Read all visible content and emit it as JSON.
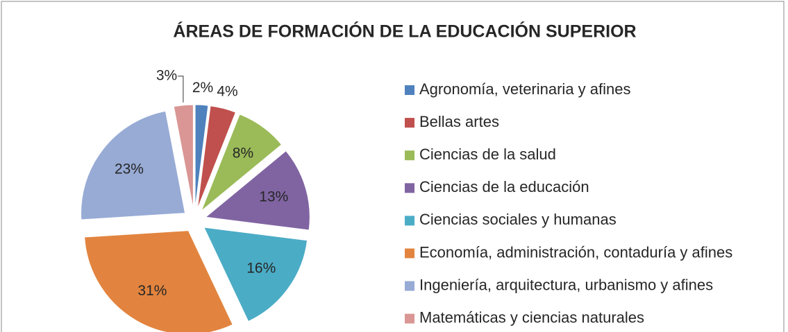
{
  "chart_data": {
    "type": "pie",
    "title": "ÁREAS DE FORMACIÓN DE LA EDUCACIÓN SUPERIOR",
    "categories": [
      "Agronomía, veterinaria y afines",
      "Bellas artes",
      "Ciencias de la salud",
      "Ciencias de la educación",
      "Ciencias sociales y humanas",
      "Economía, administración, contaduría y afines",
      "Ingeniería, arquitectura, urbanismo y afines",
      "Matemáticas y ciencias naturales"
    ],
    "values": [
      2,
      4,
      8,
      13,
      16,
      31,
      23,
      3
    ],
    "value_labels": [
      "2%",
      "4%",
      "8%",
      "13%",
      "16%",
      "31%",
      "23%",
      "3%"
    ],
    "colors": [
      "#4f81bd",
      "#c0504d",
      "#9bbb59",
      "#8064a2",
      "#4bacc6",
      "#e2843f",
      "#97abd5",
      "#d99694"
    ],
    "legend": "right"
  }
}
